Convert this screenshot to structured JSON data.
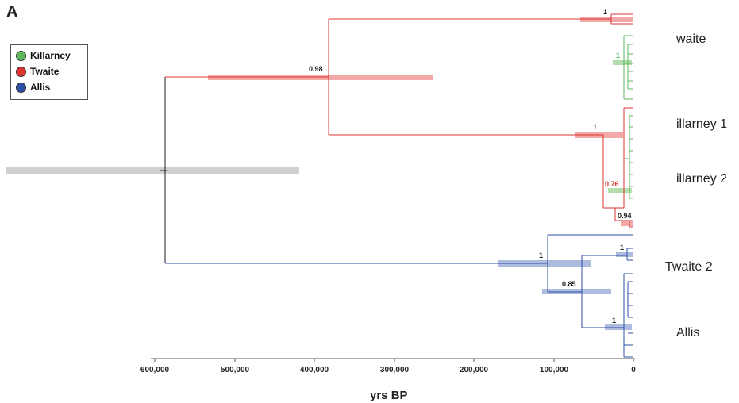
{
  "panel_label": "A",
  "legend": [
    {
      "label": "Killarney",
      "color": "#5cb85c"
    },
    {
      "label": "Twaite",
      "color": "#dd3333"
    },
    {
      "label": "Allis",
      "color": "#2e4fa6"
    }
  ],
  "clade_labels": [
    "waite",
    "illarney 1",
    "illarney 2",
    "Twaite 2",
    "Allis"
  ],
  "xaxis": {
    "label": "yrs BP",
    "ticks": [
      "600,000",
      "500,000",
      "400,000",
      "300,000",
      "200,000",
      "100,000",
      "0"
    ]
  },
  "support_values": [
    "1",
    "0.98",
    "1",
    "1",
    "0.76",
    "0.94",
    "1",
    "1",
    "0.85",
    "1"
  ]
}
